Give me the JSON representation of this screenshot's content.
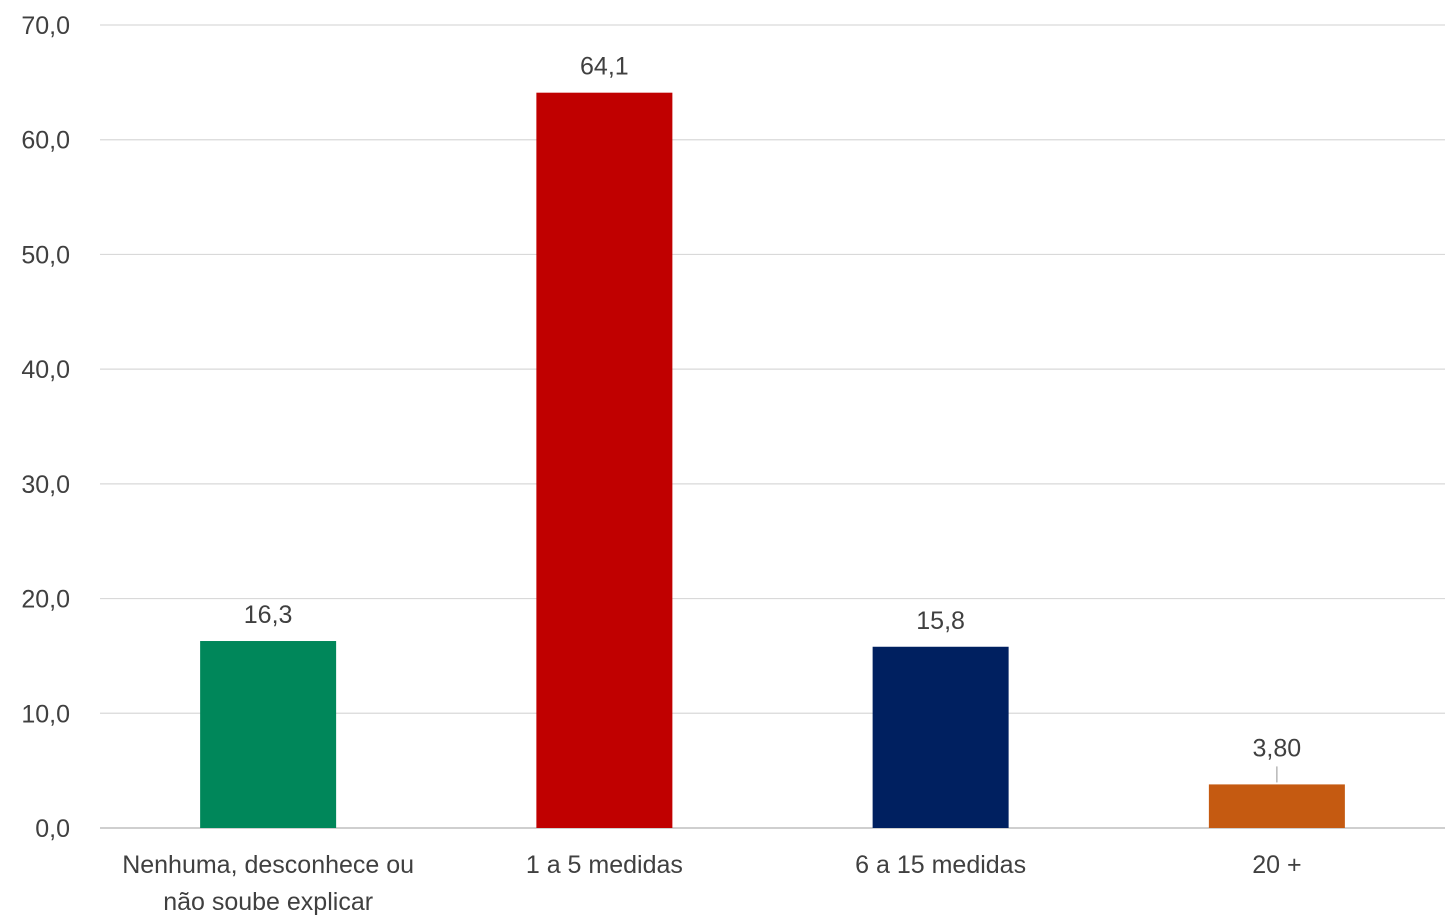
{
  "chart_data": {
    "type": "bar",
    "categories": [
      [
        "Nenhuma, desconhece ou",
        "não soube explicar"
      ],
      [
        "1 a 5 medidas"
      ],
      [
        "6 a 15 medidas"
      ],
      [
        "20 +"
      ]
    ],
    "values": [
      16.3,
      64.1,
      15.8,
      3.8
    ],
    "data_labels": [
      "16,3",
      "64,1",
      "15,8",
      "3,80"
    ],
    "colors": [
      "#00875A",
      "#C00000",
      "#002060",
      "#C55A11"
    ],
    "ylim": [
      0,
      70
    ],
    "yticks": [
      0,
      10,
      20,
      30,
      40,
      50,
      60,
      70
    ],
    "ytick_labels": [
      "0,0",
      "10,0",
      "20,0",
      "30,0",
      "40,0",
      "50,0",
      "60,0",
      "70,0"
    ],
    "grid": true,
    "gridline_color": "#D9D9D9",
    "title": "",
    "xlabel": "",
    "ylabel": ""
  }
}
